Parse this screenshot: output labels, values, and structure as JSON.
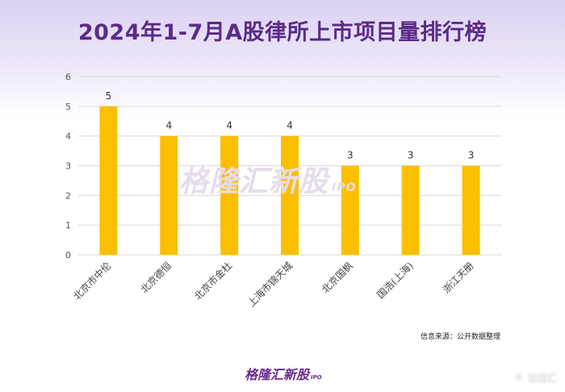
{
  "chart_data": {
    "type": "bar",
    "title": "2024年1-7月A股律所上市项目量排行榜",
    "categories": [
      "北京市中伦",
      "北京德恒",
      "北京市金杜",
      "上海市锦天城",
      "北京国枫",
      "国浩(上海)",
      "浙江天册"
    ],
    "values": [
      5,
      4,
      4,
      4,
      3,
      3,
      3
    ],
    "data_labels": [
      "5",
      "4",
      "4",
      "4",
      "3",
      "3",
      "3"
    ],
    "ylim": [
      0,
      6
    ],
    "yticks": [
      "0",
      "1",
      "2",
      "3",
      "4",
      "5",
      "6"
    ],
    "xlabel": "",
    "ylabel": "",
    "grid": true,
    "bar_color": "#fcbf00",
    "grid_color": "#d9d9d9"
  },
  "source_note": "信息来源：公开数据整理",
  "watermark": {
    "text": "格隆汇新股",
    "sub": "IPO"
  },
  "footer_logo": {
    "text": "格隆汇新股",
    "sub": "IPO"
  },
  "corner_logo": {
    "mark": "G",
    "text": "格隆汇"
  },
  "colors": {
    "title": "#5a2b86",
    "brand": "#6a2c8e"
  }
}
